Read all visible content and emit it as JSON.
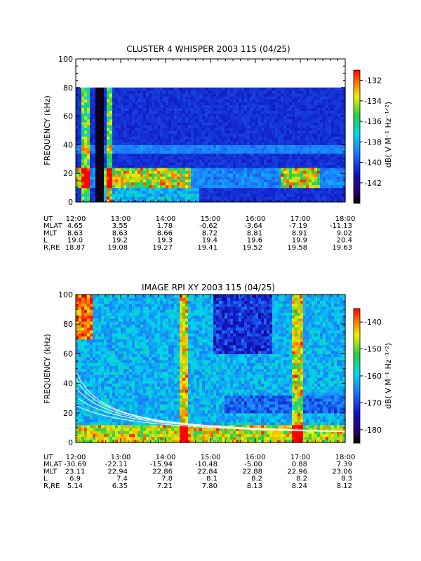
{
  "chart_data": [
    {
      "type": "heatmap",
      "title": "CLUSTER 4 WHISPER 2003 115 (04/25)",
      "ylabel": "FREQUENCY (kHz)",
      "y_ticks": [
        "0",
        "20",
        "40",
        "60",
        "80",
        "100"
      ],
      "ylim": [
        0,
        100
      ],
      "data_ylim": [
        0,
        80
      ],
      "x_ticks": [
        "12:00",
        "13:00",
        "14:00",
        "15:00",
        "16:00",
        "17:00",
        "18:00"
      ],
      "xlim_hours": [
        12,
        18
      ],
      "colorbar": {
        "label": "dB( V M⁻¹ Hz⁻¹ᐟ²)",
        "ticks": [
          "-132",
          "-134",
          "-136",
          "-138",
          "-140",
          "-142"
        ],
        "range": [
          -144,
          -131
        ]
      },
      "ephemeris": [
        {
          "label": "UT",
          "values": [
            "12:00",
            "13:00",
            "14:00",
            "15:00",
            "16:00",
            "17:00",
            "18:00"
          ]
        },
        {
          "label": "MLAT",
          "values": [
            "4.65",
            "3.55",
            "1.78",
            "-0.62",
            "-3.64",
            "-7.19",
            "-11.13"
          ]
        },
        {
          "label": "MLT",
          "values": [
            "8.63",
            "8.63",
            "8.66",
            "8.72",
            "8.81",
            "8.91",
            "9.02"
          ]
        },
        {
          "label": "L",
          "values": [
            "19.0",
            "19.2",
            "19.3",
            "19.4",
            "19.6",
            "19.9",
            "20.4"
          ]
        },
        {
          "label": "R,RE",
          "values": [
            "18.87",
            "19.08",
            "19.27",
            "19.41",
            "19.52",
            "19.58",
            "19.63"
          ]
        }
      ]
    },
    {
      "type": "heatmap",
      "title": "IMAGE RPI XY 2003 115 (04/25)",
      "ylabel": "FREQUENCY (kHz)",
      "y_ticks": [
        "0",
        "20",
        "40",
        "60",
        "80",
        "100"
      ],
      "ylim": [
        0,
        100
      ],
      "x_ticks": [
        "12:00",
        "13:00",
        "14:00",
        "15:00",
        "16:00",
        "17:00",
        "18:00"
      ],
      "xlim_hours": [
        12,
        18
      ],
      "colorbar": {
        "label": "dB( V M⁻¹ Hz⁻¹ᐟ²)",
        "ticks": [
          "-140",
          "-150",
          "-160",
          "-170",
          "-180"
        ],
        "range": [
          -185,
          -135
        ]
      },
      "ephemeris": [
        {
          "label": "UT",
          "values": [
            "12:00",
            "13:00",
            "14:00",
            "15:00",
            "16:00",
            "17:00",
            "18:00"
          ]
        },
        {
          "label": "MLAT",
          "values": [
            "-30.69",
            "-22.11",
            "-15.94",
            "-10.48",
            "-5.00",
            "0.88",
            "7.39"
          ]
        },
        {
          "label": "MLT",
          "values": [
            "23.11",
            "22.94",
            "22.86",
            "22.84",
            "22.88",
            "22.96",
            "23.06"
          ]
        },
        {
          "label": "L",
          "values": [
            "6.9",
            "7.4",
            "7.8",
            "8.1",
            "8.2",
            "8.2",
            "8.3"
          ]
        },
        {
          "label": "R,RE",
          "values": [
            "5.14",
            "6.35",
            "7.21",
            "7.80",
            "8.13",
            "8.24",
            "8.12"
          ]
        }
      ]
    }
  ]
}
